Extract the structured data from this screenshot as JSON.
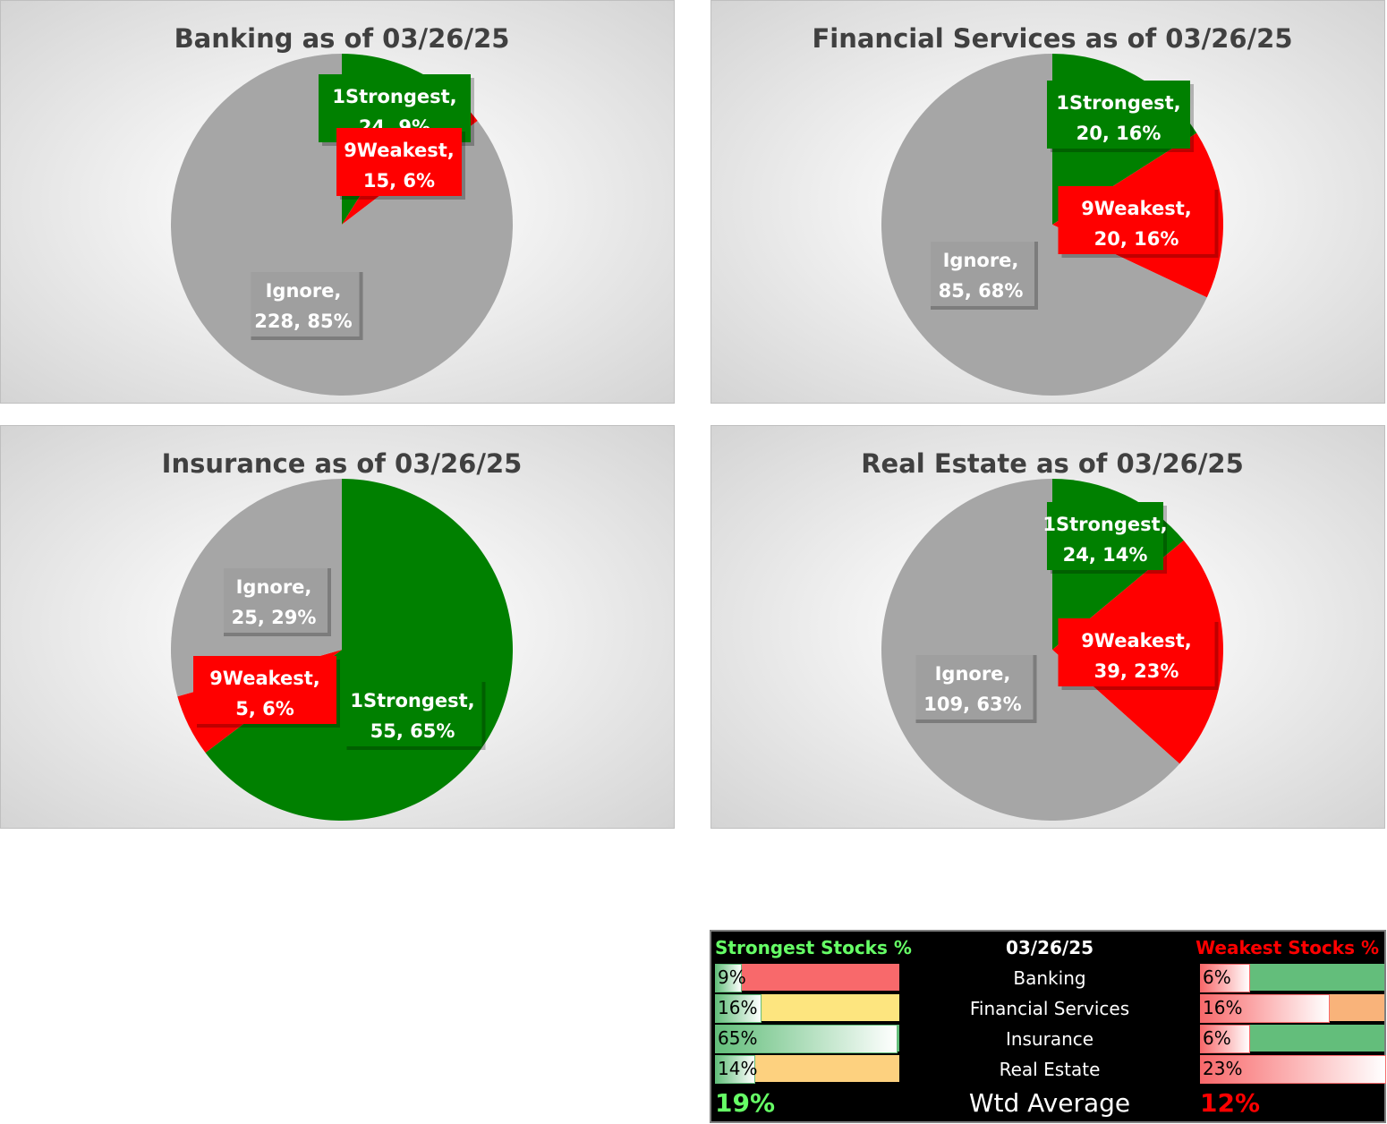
{
  "charts": [
    {
      "title": "Banking as of 03/26/25",
      "slices": [
        {
          "label": "1Strongest, ",
          "line2": "24, 9%",
          "value": 24,
          "color": "#008000"
        },
        {
          "label": "9Weakest, ",
          "line2": "15, 6%",
          "value": 15,
          "color": "#ff0000"
        },
        {
          "label": "Ignore, ",
          "line2": "228, 85%",
          "value": 228,
          "color": "#a6a6a6"
        }
      ]
    },
    {
      "title": "Financial Services as of 03/26/25",
      "slices": [
        {
          "label": "1Strongest, ",
          "line2": "20, 16%",
          "value": 20,
          "color": "#008000"
        },
        {
          "label": "9Weakest, ",
          "line2": "20, 16%",
          "value": 20,
          "color": "#ff0000"
        },
        {
          "label": "Ignore, ",
          "line2": "85, 68%",
          "value": 85,
          "color": "#a6a6a6"
        }
      ]
    },
    {
      "title": "Insurance as of 03/26/25",
      "slices": [
        {
          "label": "1Strongest, ",
          "line2": "55, 65%",
          "value": 55,
          "color": "#008000"
        },
        {
          "label": "9Weakest, ",
          "line2": "5, 6%",
          "value": 5,
          "color": "#ff0000"
        },
        {
          "label": "Ignore, ",
          "line2": "25, 29%",
          "value": 25,
          "color": "#a6a6a6"
        }
      ]
    },
    {
      "title": "Real Estate as of 03/26/25",
      "slices": [
        {
          "label": "1Strongest, ",
          "line2": "24, 14%",
          "value": 24,
          "color": "#008000"
        },
        {
          "label": "9Weakest, ",
          "line2": "39, 23%",
          "value": 39,
          "color": "#ff0000"
        },
        {
          "label": "Ignore, ",
          "line2": "109, 63%",
          "value": 109,
          "color": "#a6a6a6"
        }
      ]
    }
  ],
  "chart_data": [
    {
      "type": "pie",
      "title": "Banking as of 03/26/25",
      "categories": [
        "1Strongest",
        "9Weakest",
        "Ignore"
      ],
      "values": [
        24,
        15,
        228
      ],
      "percents": [
        "9%",
        "6%",
        "85%"
      ]
    },
    {
      "type": "pie",
      "title": "Financial Services as of 03/26/25",
      "categories": [
        "1Strongest",
        "9Weakest",
        "Ignore"
      ],
      "values": [
        20,
        20,
        85
      ],
      "percents": [
        "16%",
        "16%",
        "68%"
      ]
    },
    {
      "type": "pie",
      "title": "Insurance as of 03/26/25",
      "categories": [
        "1Strongest",
        "9Weakest",
        "Ignore"
      ],
      "values": [
        55,
        5,
        25
      ],
      "percents": [
        "65%",
        "6%",
        "29%"
      ]
    },
    {
      "type": "pie",
      "title": "Real Estate as of 03/26/25",
      "categories": [
        "1Strongest",
        "9Weakest",
        "Ignore"
      ],
      "values": [
        24,
        39,
        109
      ],
      "percents": [
        "14%",
        "23%",
        "63%"
      ]
    },
    {
      "type": "table",
      "header": {
        "left": "Strongest Stocks %",
        "center": "03/26/25",
        "right": "Weakest Stocks %"
      },
      "rows": [
        {
          "sector": "Banking",
          "strong": "9%",
          "strong_value": 0.09,
          "weak": "6%",
          "weak_value": 0.06
        },
        {
          "sector": "Financial Services",
          "strong": "16%",
          "strong_value": 0.16,
          "weak": "16%",
          "weak_value": 0.16
        },
        {
          "sector": "Insurance",
          "strong": "65%",
          "strong_value": 0.65,
          "weak": "6%",
          "weak_value": 0.06
        },
        {
          "sector": "Real Estate",
          "strong": "14%",
          "strong_value": 0.14,
          "weak": "23%",
          "weak_value": 0.23
        }
      ],
      "footer": {
        "strong": "19%",
        "label": "Wtd Average",
        "weak": "12%"
      }
    }
  ],
  "summary": {
    "header": {
      "left": "Strongest Stocks %",
      "center": "03/26/25",
      "right": "Weakest Stocks %"
    },
    "rows": [
      {
        "sector": "Banking",
        "strong": "9%",
        "strong_value": 0.09,
        "strong_bg": "#f8696b",
        "weak": "6%",
        "weak_value": 0.06,
        "weak_bg": "#63be7b"
      },
      {
        "sector": "Financial Services",
        "strong": "16%",
        "strong_value": 0.16,
        "strong_bg": "#fde57f",
        "weak": "16%",
        "weak_value": 0.16,
        "weak_bg": "#f9b37a"
      },
      {
        "sector": "Insurance",
        "strong": "65%",
        "strong_value": 0.65,
        "strong_bg": "#63be7b",
        "weak": "6%",
        "weak_value": 0.06,
        "weak_bg": "#63be7b"
      },
      {
        "sector": "Real Estate",
        "strong": "14%",
        "strong_value": 0.14,
        "strong_bg": "#fdd17f",
        "weak": "23%",
        "weak_value": 0.23,
        "weak_bg": "#f8696b"
      }
    ],
    "footer": {
      "strong": "19%",
      "label": "Wtd Average",
      "weak": "12%"
    },
    "colors": {
      "strong_text": "#66ff66",
      "weak_text": "#ff0000",
      "header_center": "#ffffff"
    }
  }
}
